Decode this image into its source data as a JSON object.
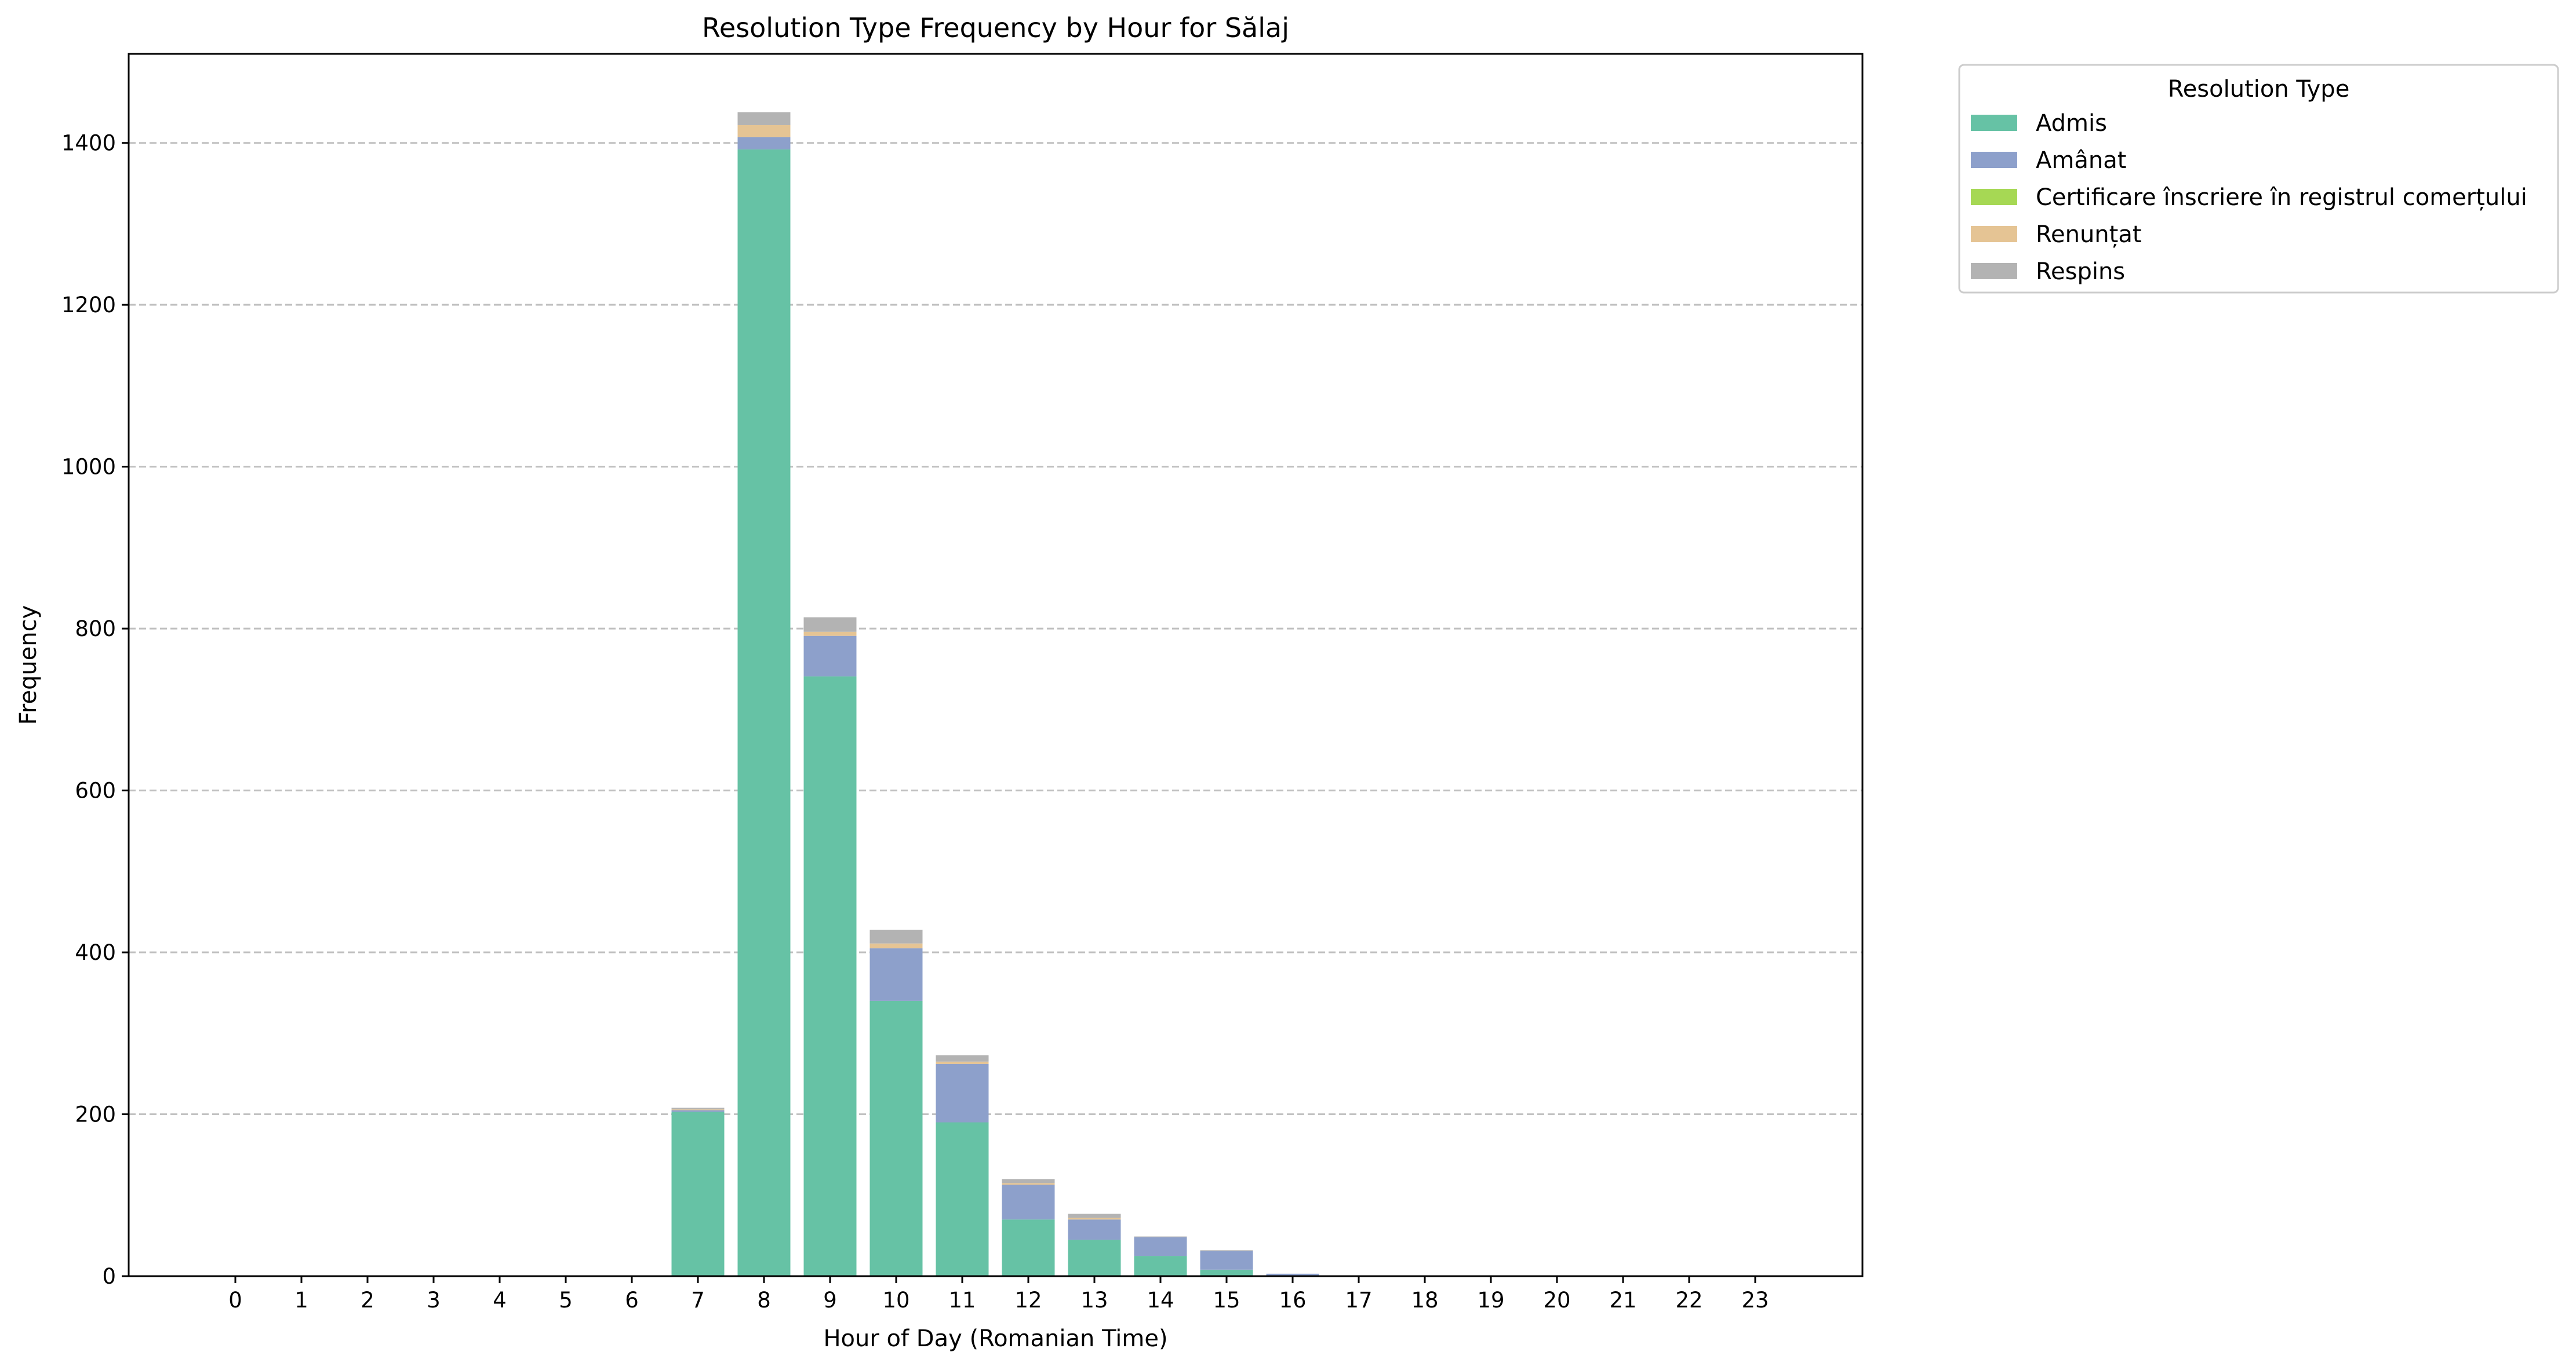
{
  "chart_data": {
    "type": "bar",
    "stacked": true,
    "title": "Resolution Type Frequency by Hour for Sălaj",
    "xlabel": "Hour of Day (Romanian Time)",
    "ylabel": "Frequency",
    "ylim": [
      0,
      1510
    ],
    "yticks": [
      0,
      200,
      400,
      600,
      800,
      1000,
      1200,
      1400
    ],
    "grid": "y, dashed",
    "legend_title": "Resolution Type",
    "legend_position": "outside top-right",
    "categories": [
      "0",
      "1",
      "2",
      "3",
      "4",
      "5",
      "6",
      "7",
      "8",
      "9",
      "10",
      "11",
      "12",
      "13",
      "14",
      "15",
      "16",
      "17",
      "18",
      "19",
      "20",
      "21",
      "22",
      "23"
    ],
    "series": [
      {
        "name": "Admis",
        "color": "#66c2a5",
        "values": [
          0,
          0,
          0,
          0,
          0,
          0,
          0,
          203,
          1392,
          741,
          340,
          190,
          70,
          45,
          25,
          8,
          1,
          0,
          0,
          0,
          0,
          0,
          0,
          0
        ]
      },
      {
        "name": "Amânat",
        "color": "#8da0cb",
        "values": [
          0,
          0,
          0,
          0,
          0,
          0,
          0,
          2,
          15,
          50,
          65,
          72,
          43,
          25,
          23,
          23,
          2,
          0,
          0,
          0,
          0,
          0,
          0,
          0
        ]
      },
      {
        "name": "Certificare înscriere în registrul comerțului",
        "color": "#a6d854",
        "values": [
          0,
          0,
          0,
          0,
          0,
          0,
          0,
          0,
          0,
          0,
          0,
          0,
          0,
          0,
          0,
          0,
          0,
          0,
          0,
          0,
          0,
          0,
          0,
          0
        ]
      },
      {
        "name": "Renunțat",
        "color": "#e5c494",
        "values": [
          0,
          0,
          0,
          0,
          0,
          0,
          0,
          1,
          15,
          5,
          6,
          3,
          2,
          2,
          0,
          0,
          0,
          0,
          0,
          0,
          0,
          0,
          0,
          0
        ]
      },
      {
        "name": "Respins",
        "color": "#b3b3b3",
        "values": [
          0,
          0,
          0,
          0,
          0,
          0,
          0,
          2,
          16,
          18,
          17,
          8,
          5,
          5,
          1,
          1,
          0,
          0,
          0,
          0,
          0,
          0,
          0,
          0
        ]
      }
    ]
  }
}
